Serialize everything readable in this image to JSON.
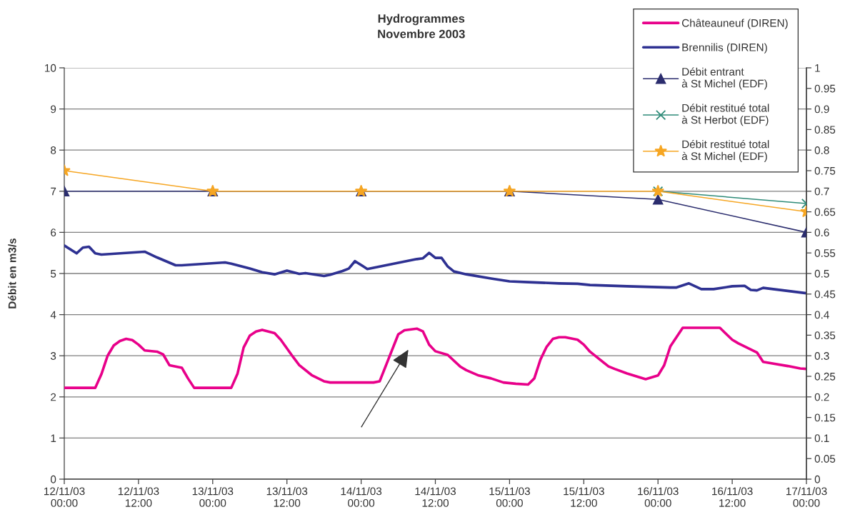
{
  "chart_data": {
    "type": "line",
    "title": "Hydrogrammes\nNovembre 2003",
    "ylabel": "Débit en m3/s",
    "xlim": [
      "2003-11-12T00:00",
      "2003-11-17T00:00"
    ],
    "xticks": [
      {
        "value": "2003-11-12T00:00",
        "label": "12/11/03\n00:00"
      },
      {
        "value": "2003-11-12T12:00",
        "label": "12/11/03\n12:00"
      },
      {
        "value": "2003-11-13T00:00",
        "label": "13/11/03\n00:00"
      },
      {
        "value": "2003-11-13T12:00",
        "label": "13/11/03\n12:00"
      },
      {
        "value": "2003-11-14T00:00",
        "label": "14/11/03\n00:00"
      },
      {
        "value": "2003-11-14T12:00",
        "label": "14/11/03\n12:00"
      },
      {
        "value": "2003-11-15T00:00",
        "label": "15/11/03\n00:00"
      },
      {
        "value": "2003-11-15T12:00",
        "label": "15/11/03\n12:00"
      },
      {
        "value": "2003-11-16T00:00",
        "label": "16/11/03\n00:00"
      },
      {
        "value": "2003-11-16T12:00",
        "label": "16/11/03\n12:00"
      },
      {
        "value": "2003-11-17T00:00",
        "label": "17/11/03\n00:00"
      }
    ],
    "ylim": [
      0,
      10
    ],
    "yticks": [
      0,
      1,
      2,
      3,
      4,
      5,
      6,
      7,
      8,
      9,
      10
    ],
    "y2lim": [
      0,
      1
    ],
    "y2ticks": [
      0,
      0.05,
      0.1,
      0.15,
      0.2,
      0.25,
      0.3,
      0.35,
      0.4,
      0.45,
      0.5,
      0.55,
      0.6,
      0.65,
      0.7,
      0.75,
      0.8,
      0.85,
      0.9,
      0.95,
      1
    ],
    "grid": "y",
    "legend": "top right",
    "series": [
      {
        "name": "Châteauneuf (DIREN)",
        "color": "#e8008a",
        "marker": "none",
        "line_style": "solid",
        "axis": "y",
        "x": [
          "2003-11-12T00:00",
          "2003-11-12T05:00",
          "2003-11-12T06:00",
          "2003-11-12T07:00",
          "2003-11-12T08:00",
          "2003-11-12T09:00",
          "2003-11-12T10:00",
          "2003-11-12T11:00",
          "2003-11-12T12:00",
          "2003-11-12T13:00",
          "2003-11-12T15:00",
          "2003-11-12T16:00",
          "2003-11-12T17:00",
          "2003-11-12T19:00",
          "2003-11-12T20:00",
          "2003-11-12T21:00",
          "2003-11-13T03:00",
          "2003-11-13T04:00",
          "2003-11-13T05:00",
          "2003-11-13T06:00",
          "2003-11-13T07:00",
          "2003-11-13T08:00",
          "2003-11-13T10:00",
          "2003-11-13T11:00",
          "2003-11-13T13:00",
          "2003-11-13T14:00",
          "2003-11-13T16:00",
          "2003-11-13T18:00",
          "2003-11-13T19:00",
          "2003-11-13T21:00",
          "2003-11-14T02:00",
          "2003-11-14T03:00",
          "2003-11-14T06:00",
          "2003-11-14T07:00",
          "2003-11-14T09:00",
          "2003-11-14T10:00",
          "2003-11-14T11:00",
          "2003-11-14T12:00",
          "2003-11-14T14:00",
          "2003-11-14T16:00",
          "2003-11-14T17:00",
          "2003-11-14T19:00",
          "2003-11-14T21:00",
          "2003-11-14T23:00",
          "2003-11-15T01:00",
          "2003-11-15T03:00",
          "2003-11-15T04:00",
          "2003-11-15T05:00",
          "2003-11-15T06:00",
          "2003-11-15T07:00",
          "2003-11-15T08:00",
          "2003-11-15T09:00",
          "2003-11-15T11:00",
          "2003-11-15T12:00",
          "2003-11-15T13:00",
          "2003-11-15T16:00",
          "2003-11-15T17:00",
          "2003-11-15T19:00",
          "2003-11-15T22:00",
          "2003-11-16T00:00",
          "2003-11-16T01:00",
          "2003-11-16T02:00",
          "2003-11-16T04:00",
          "2003-11-16T10:00",
          "2003-11-16T12:00",
          "2003-11-16T13:00",
          "2003-11-16T16:00",
          "2003-11-16T17:00",
          "2003-11-16T21:00",
          "2003-11-16T23:00",
          "2003-11-17T00:00"
        ],
        "values": [
          2.22,
          2.22,
          2.55,
          3.0,
          3.25,
          3.36,
          3.41,
          3.38,
          3.27,
          3.13,
          3.1,
          3.03,
          2.77,
          2.71,
          2.45,
          2.22,
          2.22,
          2.56,
          3.2,
          3.49,
          3.59,
          3.63,
          3.55,
          3.39,
          2.97,
          2.77,
          2.53,
          2.38,
          2.35,
          2.35,
          2.35,
          2.38,
          3.52,
          3.62,
          3.66,
          3.59,
          3.27,
          3.11,
          3.02,
          2.74,
          2.65,
          2.52,
          2.45,
          2.35,
          2.32,
          2.3,
          2.45,
          2.91,
          3.22,
          3.41,
          3.45,
          3.45,
          3.39,
          3.27,
          3.1,
          2.74,
          2.68,
          2.57,
          2.43,
          2.52,
          2.77,
          3.23,
          3.68,
          3.68,
          3.39,
          3.3,
          3.08,
          2.85,
          2.75,
          2.69,
          2.68
        ]
      },
      {
        "name": "Brennilis (DIREN)",
        "color": "#2e3192",
        "marker": "none",
        "line_style": "solid",
        "axis": "y",
        "x": [
          "2003-11-12T00:00",
          "2003-11-12T02:00",
          "2003-11-12T03:00",
          "2003-11-12T04:00",
          "2003-11-12T05:00",
          "2003-11-12T06:00",
          "2003-11-12T13:00",
          "2003-11-12T15:00",
          "2003-11-12T18:00",
          "2003-11-12T19:00",
          "2003-11-13T02:00",
          "2003-11-13T03:00",
          "2003-11-13T06:00",
          "2003-11-13T08:00",
          "2003-11-13T10:00",
          "2003-11-13T12:00",
          "2003-11-13T14:00",
          "2003-11-13T15:00",
          "2003-11-13T18:00",
          "2003-11-13T19:00",
          "2003-11-13T21:00",
          "2003-11-13T22:00",
          "2003-11-13T23:00",
          "2003-11-14T01:00",
          "2003-11-14T09:00",
          "2003-11-14T10:00",
          "2003-11-14T11:00",
          "2003-11-14T12:00",
          "2003-11-14T13:00",
          "2003-11-14T14:00",
          "2003-11-14T15:00",
          "2003-11-14T17:00",
          "2003-11-14T21:00",
          "2003-11-15T00:00",
          "2003-11-15T03:00",
          "2003-11-15T08:00",
          "2003-11-15T11:00",
          "2003-11-15T13:00",
          "2003-11-15T19:00",
          "2003-11-16T02:00",
          "2003-11-16T03:00",
          "2003-11-16T05:00",
          "2003-11-16T07:00",
          "2003-11-16T09:00",
          "2003-11-16T12:00",
          "2003-11-16T14:00",
          "2003-11-16T15:00",
          "2003-11-16T16:00",
          "2003-11-16T17:00",
          "2003-11-17T00:00"
        ],
        "values": [
          5.68,
          5.49,
          5.63,
          5.65,
          5.49,
          5.46,
          5.53,
          5.39,
          5.2,
          5.2,
          5.27,
          5.24,
          5.12,
          5.03,
          4.98,
          5.07,
          4.99,
          5.01,
          4.94,
          4.97,
          5.06,
          5.12,
          5.3,
          5.11,
          5.35,
          5.37,
          5.5,
          5.38,
          5.38,
          5.17,
          5.05,
          4.98,
          4.88,
          4.81,
          4.79,
          4.76,
          4.75,
          4.72,
          4.69,
          4.66,
          4.66,
          4.76,
          4.62,
          4.62,
          4.69,
          4.7,
          4.6,
          4.59,
          4.65,
          4.52
        ]
      },
      {
        "name": "Débit entrant\nà St Michel (EDF)",
        "color": "#2b2d6e",
        "marker": "triangle",
        "line_style": "solid",
        "axis": "y2",
        "x": [
          "2003-11-12T00:00",
          "2003-11-13T00:00",
          "2003-11-14T00:00",
          "2003-11-15T00:00",
          "2003-11-16T00:00",
          "2003-11-17T00:00"
        ],
        "values": [
          0.7,
          0.7,
          0.7,
          0.7,
          0.68,
          0.6
        ]
      },
      {
        "name": "Débit restitué total\nà St Herbot (EDF)",
        "color": "#2e8b78",
        "marker": "cross",
        "line_style": "solid",
        "axis": "y2",
        "x": [
          "2003-11-16T00:00",
          "2003-11-17T00:00"
        ],
        "values": [
          0.7,
          0.67
        ]
      },
      {
        "name": "Débit restitué total\nà St Michel (EDF)",
        "color": "#f6a623",
        "marker": "star",
        "line_style": "solid",
        "axis": "y2",
        "x": [
          "2003-11-12T00:00",
          "2003-11-13T00:00",
          "2003-11-14T00:00",
          "2003-11-15T00:00",
          "2003-11-16T00:00",
          "2003-11-17T00:00"
        ],
        "values": [
          0.75,
          0.7,
          0.7,
          0.7,
          0.7,
          0.65
        ]
      }
    ]
  }
}
